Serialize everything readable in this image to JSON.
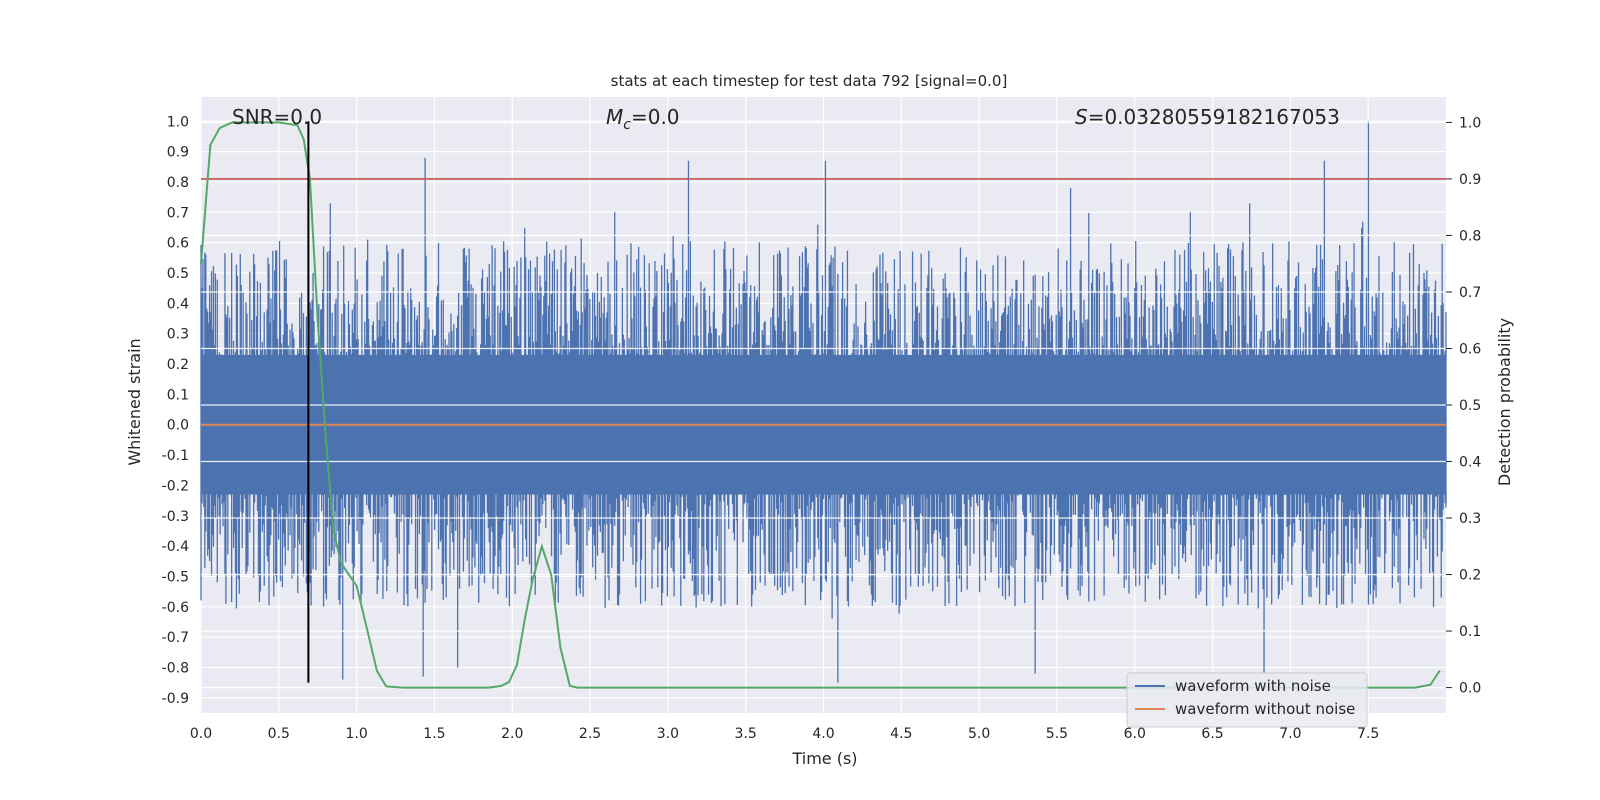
{
  "chart_data": {
    "type": "line",
    "title": "stats at each timestep for test data 792 [signal=0.0]",
    "xlabel": "Time (s)",
    "ylabel": "Whitened strain",
    "y2label": "Detection probability",
    "xlim": [
      0.0,
      8.0
    ],
    "ylim": [
      -0.95,
      1.08
    ],
    "y2lim": [
      -0.045,
      1.045
    ],
    "x_ticks": [
      "0.0",
      "0.5",
      "1.0",
      "1.5",
      "2.0",
      "2.5",
      "3.0",
      "3.5",
      "4.0",
      "4.5",
      "5.0",
      "5.5",
      "6.0",
      "6.5",
      "7.0",
      "7.5"
    ],
    "y_ticks": [
      "1.0",
      "0.9",
      "0.8",
      "0.7",
      "0.6",
      "0.5",
      "0.4",
      "0.3",
      "0.2",
      "0.1",
      "0.0",
      "-0.1",
      "-0.2",
      "-0.3",
      "-0.4",
      "-0.5",
      "-0.6",
      "-0.7",
      "-0.8",
      "-0.9"
    ],
    "y2_ticks": [
      "1.0",
      "0.9",
      "0.8",
      "0.7",
      "0.6",
      "0.5",
      "0.4",
      "0.3",
      "0.2",
      "0.1",
      "0.0"
    ],
    "annotations": {
      "snr": "SNR=0.0",
      "mc_symbol": "M",
      "mc_sub": "c",
      "mc_value": "=0.0",
      "s_symbol": "S",
      "s_value": "=0.03280559182167053"
    },
    "threshold_line": {
      "axis": "y2",
      "value": 0.9,
      "color": "#c44e52"
    },
    "marker_line": {
      "x": 0.69,
      "y_from": -0.85,
      "y_to": 1.0,
      "color": "#000000"
    },
    "series": [
      {
        "name": "waveform with noise",
        "color": "#4c72b0",
        "axis": "y",
        "envelope": {
          "upper_typical": [
            0.18,
            0.55
          ],
          "lower_typical": [
            -0.55,
            -0.18
          ],
          "spikes": [
            {
              "x": 1.44,
              "y": 0.88
            },
            {
              "x": 3.13,
              "y": 0.87
            },
            {
              "x": 4.01,
              "y": 0.87
            },
            {
              "x": 7.22,
              "y": 0.87
            },
            {
              "x": 7.5,
              "y": 1.0
            },
            {
              "x": 0.83,
              "y": 0.73
            },
            {
              "x": 2.66,
              "y": 0.7
            },
            {
              "x": 5.59,
              "y": 0.78
            },
            {
              "x": 6.74,
              "y": 0.73
            },
            {
              "x": 4.09,
              "y": -0.85
            },
            {
              "x": 6.83,
              "y": -0.82
            },
            {
              "x": 1.43,
              "y": -0.83
            },
            {
              "x": 5.36,
              "y": -0.82
            },
            {
              "x": 0.91,
              "y": -0.84
            },
            {
              "x": 1.65,
              "y": -0.8
            }
          ]
        }
      },
      {
        "name": "waveform without noise",
        "color": "#dd8452",
        "axis": "y",
        "x": [
          0.0,
          8.0
        ],
        "y": [
          0.0,
          0.0
        ]
      },
      {
        "name": "detection probability",
        "color": "#55a868",
        "axis": "y2",
        "x": [
          0.0,
          0.06,
          0.12,
          0.2,
          0.3,
          0.4,
          0.5,
          0.62,
          0.66,
          0.7,
          0.75,
          0.8,
          0.85,
          0.9,
          0.95,
          1.0,
          1.07,
          1.13,
          1.19,
          1.3,
          1.5,
          1.7,
          1.85,
          1.93,
          1.98,
          2.03,
          2.08,
          2.13,
          2.19,
          2.25,
          2.31,
          2.37,
          2.42,
          2.6,
          3.0,
          4.0,
          5.0,
          6.0,
          7.0,
          7.5,
          7.8,
          7.9,
          7.96
        ],
        "y": [
          0.75,
          0.96,
          0.99,
          1.0,
          1.0,
          1.0,
          1.0,
          0.995,
          0.97,
          0.9,
          0.65,
          0.45,
          0.28,
          0.22,
          0.2,
          0.18,
          0.1,
          0.03,
          0.002,
          0.0,
          0.0,
          0.0,
          0.0,
          0.003,
          0.01,
          0.04,
          0.12,
          0.19,
          0.25,
          0.2,
          0.07,
          0.003,
          0.0,
          0.0,
          0.0,
          0.0,
          0.0,
          0.0,
          0.0,
          0.0,
          0.0,
          0.005,
          0.03
        ]
      }
    ],
    "legend": {
      "placement": "bottom-right",
      "entries": [
        {
          "label": "waveform with noise",
          "color": "#4c72b0"
        },
        {
          "label": "waveform without noise",
          "color": "#dd8452"
        }
      ]
    },
    "style": {
      "axes_bg": "#eaeaf2",
      "grid_color": "#ffffff"
    }
  }
}
